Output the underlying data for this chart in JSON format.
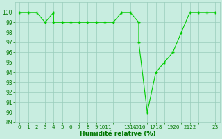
{
  "x": [
    0,
    1,
    2,
    3,
    4,
    4,
    5,
    6,
    7,
    8,
    9,
    10,
    11,
    12,
    13,
    14,
    14,
    15,
    16,
    17,
    18,
    19,
    20,
    21,
    22,
    23
  ],
  "y": [
    100,
    100,
    100,
    99,
    100,
    99,
    99,
    99,
    99,
    99,
    99,
    99,
    99,
    100,
    100,
    99,
    97,
    90,
    94,
    95,
    96,
    98,
    100,
    100,
    100,
    100
  ],
  "line_color": "#00cc00",
  "marker": "+",
  "marker_size": 3.5,
  "marker_lw": 1.0,
  "line_width": 0.8,
  "bg_color": "#c8ede0",
  "grid_color": "#99ccbb",
  "xlabel": "Humidité relative (%)",
  "xlabel_color": "#007700",
  "tick_color": "#007700",
  "ylim": [
    89,
    101
  ],
  "xlim": [
    -0.5,
    23.5
  ],
  "yticks": [
    89,
    90,
    91,
    92,
    93,
    94,
    95,
    96,
    97,
    98,
    99,
    100
  ],
  "ytick_labels": [
    "89",
    "90",
    "91",
    "92",
    "93",
    "94",
    "95",
    "96",
    "97",
    "98",
    "99",
    "100"
  ],
  "xtick_positions": [
    0,
    1,
    2,
    3,
    4,
    5,
    6,
    7,
    8,
    9,
    10,
    11,
    13,
    14,
    15,
    16,
    17,
    18,
    19,
    20,
    21,
    22,
    23
  ],
  "xtick_labels": [
    "0",
    "1",
    "2",
    "3",
    "4",
    "5",
    "6",
    "7",
    "8",
    "9",
    "1011",
    "",
    "1314",
    "1516",
    "",
    "1718",
    "",
    "1920",
    "",
    "2122",
    "",
    "",
    "23"
  ]
}
